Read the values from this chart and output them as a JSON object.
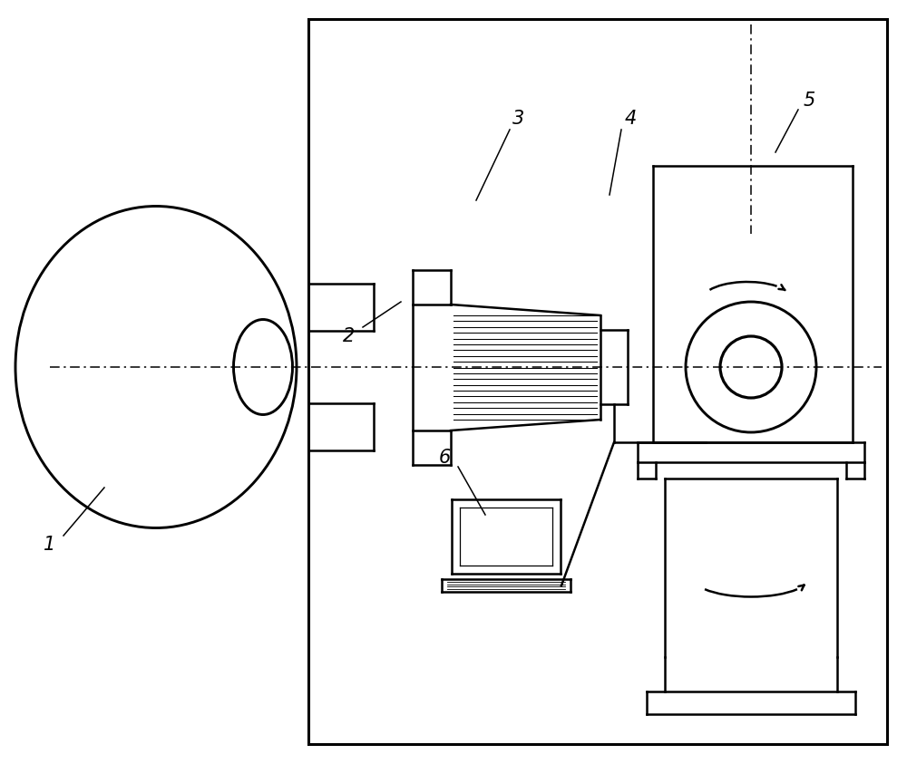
{
  "bg_color": "#ffffff",
  "lc": "#000000",
  "lw": 1.8,
  "lw_thin": 0.9,
  "label_1": "1",
  "label_2": "2",
  "label_3": "3",
  "label_4": "4",
  "label_5": "5",
  "label_6": "6",
  "fs": 15
}
